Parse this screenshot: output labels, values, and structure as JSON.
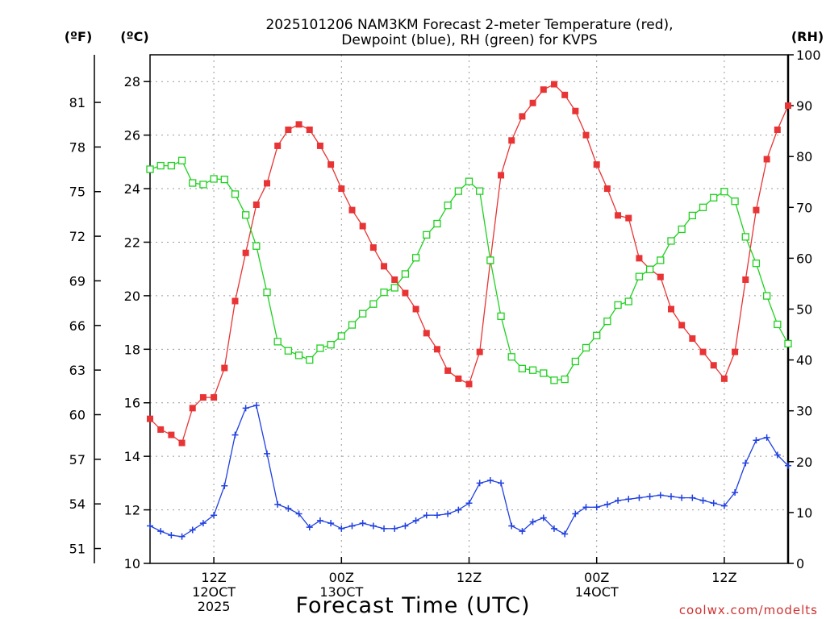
{
  "chart_data": {
    "type": "line",
    "title_lines": [
      "2025101206 NAM3KM Forecast 2-meter Temperature (red),",
      "Dewpoint (blue), RH (green) for KVPS"
    ],
    "xlabel": "Forecast Time (UTC)",
    "credit": "coolwx.com/modelts",
    "axes": {
      "celsius": {
        "label": "(ºC)",
        "range": [
          10,
          29
        ],
        "ticks": [
          10,
          12,
          14,
          16,
          18,
          20,
          22,
          24,
          26,
          28
        ]
      },
      "fahrenheit": {
        "label": "(ºF)",
        "ticks": [
          51,
          54,
          57,
          60,
          63,
          66,
          69,
          72,
          75,
          78,
          81
        ]
      },
      "rh": {
        "label": "(RH)",
        "range": [
          0,
          100
        ],
        "ticks": [
          0,
          10,
          20,
          30,
          40,
          50,
          60,
          70,
          80,
          90,
          100
        ]
      },
      "time": {
        "range_hours": [
          6,
          66
        ]
      }
    },
    "x_ticks": [
      {
        "hour": 12,
        "lines": [
          "12Z",
          "12OCT",
          "2025"
        ]
      },
      {
        "hour": 24,
        "lines": [
          "00Z",
          "13OCT"
        ]
      },
      {
        "hour": 36,
        "lines": [
          "12Z"
        ]
      },
      {
        "hour": 48,
        "lines": [
          "00Z",
          "14OCT"
        ]
      },
      {
        "hour": 60,
        "lines": [
          "12Z"
        ]
      }
    ],
    "hours": [
      6,
      7,
      8,
      9,
      10,
      11,
      12,
      13,
      14,
      15,
      16,
      17,
      18,
      19,
      20,
      21,
      22,
      23,
      24,
      25,
      26,
      27,
      28,
      29,
      30,
      31,
      32,
      33,
      34,
      35,
      36,
      37,
      38,
      39,
      40,
      41,
      42,
      43,
      44,
      45,
      46,
      47,
      48,
      49,
      50,
      51,
      52,
      53,
      54,
      55,
      56,
      57,
      58,
      59,
      60,
      61,
      62,
      63,
      64,
      65,
      66
    ],
    "series": [
      {
        "name": "Temperature",
        "unit": "C",
        "color": "#e83434",
        "marker": "filled-square",
        "values": [
          15.4,
          15.0,
          14.8,
          14.5,
          15.8,
          16.2,
          16.2,
          17.3,
          19.8,
          21.6,
          23.4,
          24.2,
          25.6,
          26.2,
          26.4,
          26.2,
          25.6,
          24.9,
          24.0,
          23.2,
          22.6,
          21.8,
          21.1,
          20.6,
          20.1,
          19.5,
          18.6,
          18.0,
          17.2,
          16.9,
          16.7,
          17.9,
          21.3,
          24.5,
          25.8,
          26.7,
          27.2,
          27.7,
          27.9,
          27.5,
          26.9,
          26.0,
          24.9,
          24.0,
          23.0,
          22.9,
          21.4,
          21.0,
          20.7,
          19.5,
          18.9,
          18.4,
          17.9,
          17.4,
          16.9,
          17.9,
          20.6,
          23.2,
          25.1,
          26.2,
          27.1
        ]
      },
      {
        "name": "Dewpoint",
        "unit": "C",
        "color": "#2040e0",
        "marker": "plus",
        "values": [
          11.4,
          11.2,
          11.05,
          11.0,
          11.25,
          11.5,
          11.8,
          12.9,
          14.8,
          15.8,
          15.9,
          14.1,
          12.2,
          12.05,
          11.85,
          11.35,
          11.6,
          11.5,
          11.3,
          11.4,
          11.5,
          11.4,
          11.3,
          11.3,
          11.4,
          11.6,
          11.8,
          11.8,
          11.85,
          12.0,
          12.25,
          13.0,
          13.1,
          13.0,
          11.4,
          11.2,
          11.55,
          11.7,
          11.3,
          11.1,
          11.85,
          12.1,
          12.1,
          12.2,
          12.35,
          12.4,
          12.45,
          12.5,
          12.55,
          12.5,
          12.45,
          12.45,
          12.35,
          12.25,
          12.15,
          12.65,
          13.75,
          14.6,
          14.7,
          14.05,
          13.65
        ]
      },
      {
        "name": "RH",
        "unit": "%",
        "color": "#20d020",
        "marker": "open-square",
        "values": [
          77.5,
          78.2,
          78.2,
          79.2,
          74.8,
          74.5,
          75.6,
          75.5,
          72.6,
          68.5,
          62.4,
          53.3,
          43.6,
          41.8,
          40.9,
          40.0,
          42.3,
          43.0,
          44.7,
          46.9,
          49.1,
          51.0,
          53.3,
          54.2,
          56.9,
          60.1,
          64.6,
          66.8,
          70.4,
          73.2,
          75.1,
          73.2,
          59.6,
          48.6,
          40.6,
          38.3,
          38.0,
          37.4,
          36.0,
          36.2,
          39.7,
          42.4,
          44.8,
          47.6,
          50.8,
          51.5,
          56.4,
          57.8,
          59.6,
          63.4,
          65.7,
          68.4,
          70.0,
          71.9,
          73.1,
          71.2,
          64.2,
          59.0,
          52.6,
          47.0,
          43.2
        ]
      }
    ]
  }
}
